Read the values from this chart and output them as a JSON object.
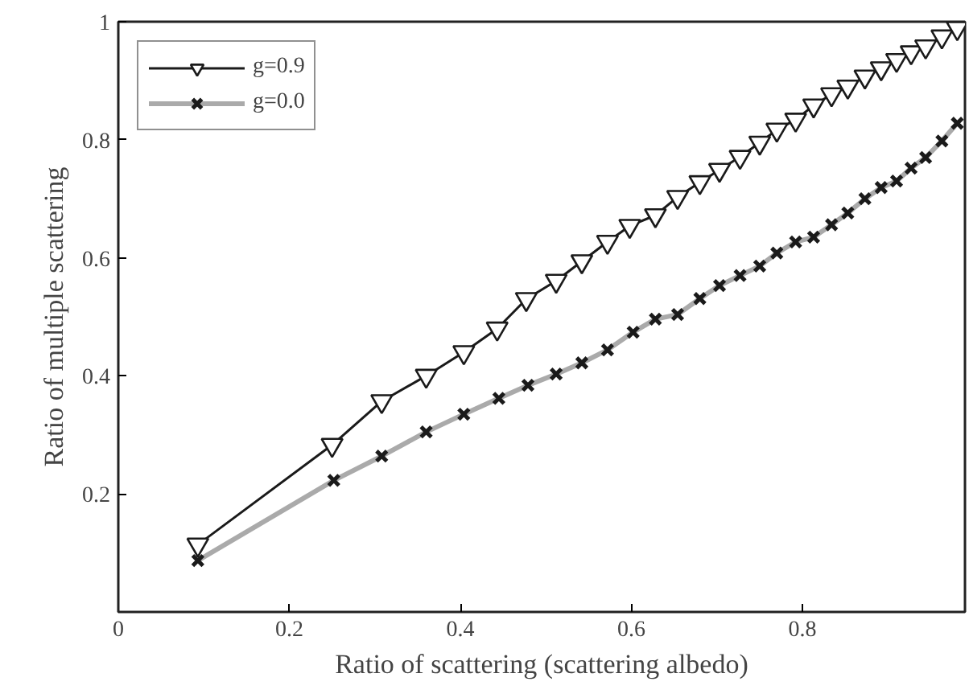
{
  "chart_data": {
    "type": "line",
    "xlabel": "Ratio of scattering (scattering albedo)",
    "ylabel": "Ratio of multiple scattering",
    "xlim": [
      0,
      0.99
    ],
    "ylim": [
      0,
      1
    ],
    "xticks": [
      0,
      0.2,
      0.4,
      0.6,
      0.8
    ],
    "yticks": [
      0.2,
      0.4,
      0.6,
      0.8,
      1
    ],
    "grid": false,
    "legend": "top left",
    "line_style": "solid",
    "series": [
      {
        "name": "g=0.9",
        "color": "#1a1a1a",
        "marker": "triangle",
        "x": [
          0.093,
          0.25,
          0.308,
          0.36,
          0.404,
          0.443,
          0.477,
          0.512,
          0.542,
          0.572,
          0.598,
          0.628,
          0.654,
          0.68,
          0.703,
          0.727,
          0.75,
          0.77,
          0.792,
          0.813,
          0.834,
          0.853,
          0.873,
          0.892,
          0.91,
          0.927,
          0.944,
          0.963,
          0.981
        ],
        "values": [
          0.114,
          0.283,
          0.357,
          0.4,
          0.44,
          0.48,
          0.53,
          0.561,
          0.594,
          0.627,
          0.654,
          0.672,
          0.703,
          0.728,
          0.749,
          0.771,
          0.795,
          0.817,
          0.834,
          0.858,
          0.877,
          0.89,
          0.907,
          0.921,
          0.935,
          0.948,
          0.958,
          0.975,
          0.989
        ]
      },
      {
        "name": "g=0.0",
        "color": "#aaaaaa",
        "marker": "cross",
        "x": [
          0.093,
          0.252,
          0.308,
          0.36,
          0.404,
          0.445,
          0.479,
          0.512,
          0.542,
          0.572,
          0.602,
          0.628,
          0.654,
          0.68,
          0.703,
          0.727,
          0.75,
          0.77,
          0.792,
          0.813,
          0.834,
          0.853,
          0.873,
          0.892,
          0.91,
          0.927,
          0.944,
          0.963,
          0.981
        ],
        "values": [
          0.087,
          0.223,
          0.264,
          0.305,
          0.335,
          0.362,
          0.384,
          0.403,
          0.422,
          0.444,
          0.474,
          0.496,
          0.504,
          0.531,
          0.553,
          0.57,
          0.586,
          0.608,
          0.627,
          0.635,
          0.656,
          0.676,
          0.7,
          0.719,
          0.73,
          0.752,
          0.77,
          0.798,
          0.828
        ]
      }
    ]
  }
}
